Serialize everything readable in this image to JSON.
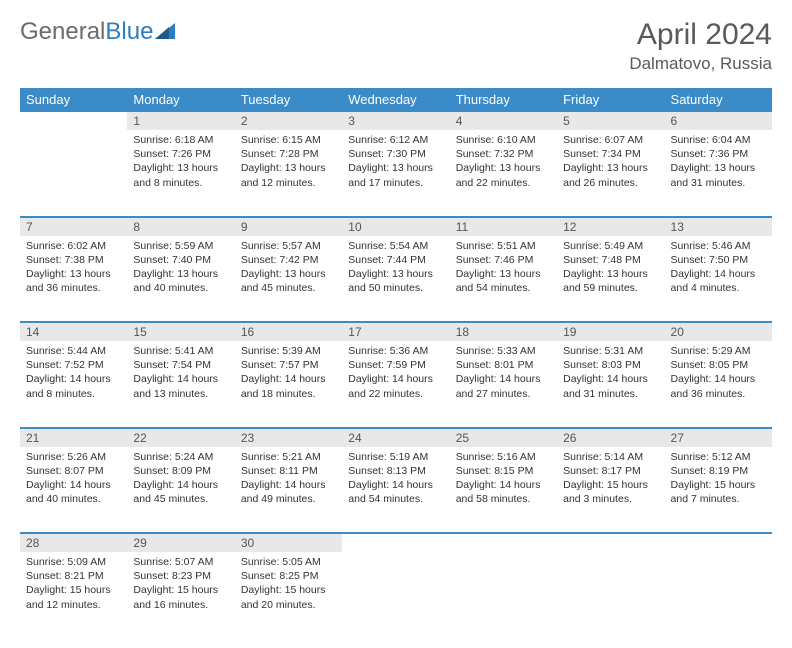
{
  "logo": {
    "text1": "General",
    "text2": "Blue"
  },
  "title": "April 2024",
  "location": "Dalmatovo, Russia",
  "weekdays": [
    "Sunday",
    "Monday",
    "Tuesday",
    "Wednesday",
    "Thursday",
    "Friday",
    "Saturday"
  ],
  "colors": {
    "header_bg": "#3b8bc8",
    "header_text": "#ffffff",
    "daynum_bg": "#e8e8e8",
    "border": "#3b8bc8",
    "logo_gray": "#6b6b6b",
    "logo_blue": "#2d7dc0"
  },
  "weeks": [
    [
      null,
      {
        "n": "1",
        "sr": "6:18 AM",
        "ss": "7:26 PM",
        "dl": "13 hours and 8 minutes."
      },
      {
        "n": "2",
        "sr": "6:15 AM",
        "ss": "7:28 PM",
        "dl": "13 hours and 12 minutes."
      },
      {
        "n": "3",
        "sr": "6:12 AM",
        "ss": "7:30 PM",
        "dl": "13 hours and 17 minutes."
      },
      {
        "n": "4",
        "sr": "6:10 AM",
        "ss": "7:32 PM",
        "dl": "13 hours and 22 minutes."
      },
      {
        "n": "5",
        "sr": "6:07 AM",
        "ss": "7:34 PM",
        "dl": "13 hours and 26 minutes."
      },
      {
        "n": "6",
        "sr": "6:04 AM",
        "ss": "7:36 PM",
        "dl": "13 hours and 31 minutes."
      }
    ],
    [
      {
        "n": "7",
        "sr": "6:02 AM",
        "ss": "7:38 PM",
        "dl": "13 hours and 36 minutes."
      },
      {
        "n": "8",
        "sr": "5:59 AM",
        "ss": "7:40 PM",
        "dl": "13 hours and 40 minutes."
      },
      {
        "n": "9",
        "sr": "5:57 AM",
        "ss": "7:42 PM",
        "dl": "13 hours and 45 minutes."
      },
      {
        "n": "10",
        "sr": "5:54 AM",
        "ss": "7:44 PM",
        "dl": "13 hours and 50 minutes."
      },
      {
        "n": "11",
        "sr": "5:51 AM",
        "ss": "7:46 PM",
        "dl": "13 hours and 54 minutes."
      },
      {
        "n": "12",
        "sr": "5:49 AM",
        "ss": "7:48 PM",
        "dl": "13 hours and 59 minutes."
      },
      {
        "n": "13",
        "sr": "5:46 AM",
        "ss": "7:50 PM",
        "dl": "14 hours and 4 minutes."
      }
    ],
    [
      {
        "n": "14",
        "sr": "5:44 AM",
        "ss": "7:52 PM",
        "dl": "14 hours and 8 minutes."
      },
      {
        "n": "15",
        "sr": "5:41 AM",
        "ss": "7:54 PM",
        "dl": "14 hours and 13 minutes."
      },
      {
        "n": "16",
        "sr": "5:39 AM",
        "ss": "7:57 PM",
        "dl": "14 hours and 18 minutes."
      },
      {
        "n": "17",
        "sr": "5:36 AM",
        "ss": "7:59 PM",
        "dl": "14 hours and 22 minutes."
      },
      {
        "n": "18",
        "sr": "5:33 AM",
        "ss": "8:01 PM",
        "dl": "14 hours and 27 minutes."
      },
      {
        "n": "19",
        "sr": "5:31 AM",
        "ss": "8:03 PM",
        "dl": "14 hours and 31 minutes."
      },
      {
        "n": "20",
        "sr": "5:29 AM",
        "ss": "8:05 PM",
        "dl": "14 hours and 36 minutes."
      }
    ],
    [
      {
        "n": "21",
        "sr": "5:26 AM",
        "ss": "8:07 PM",
        "dl": "14 hours and 40 minutes."
      },
      {
        "n": "22",
        "sr": "5:24 AM",
        "ss": "8:09 PM",
        "dl": "14 hours and 45 minutes."
      },
      {
        "n": "23",
        "sr": "5:21 AM",
        "ss": "8:11 PM",
        "dl": "14 hours and 49 minutes."
      },
      {
        "n": "24",
        "sr": "5:19 AM",
        "ss": "8:13 PM",
        "dl": "14 hours and 54 minutes."
      },
      {
        "n": "25",
        "sr": "5:16 AM",
        "ss": "8:15 PM",
        "dl": "14 hours and 58 minutes."
      },
      {
        "n": "26",
        "sr": "5:14 AM",
        "ss": "8:17 PM",
        "dl": "15 hours and 3 minutes."
      },
      {
        "n": "27",
        "sr": "5:12 AM",
        "ss": "8:19 PM",
        "dl": "15 hours and 7 minutes."
      }
    ],
    [
      {
        "n": "28",
        "sr": "5:09 AM",
        "ss": "8:21 PM",
        "dl": "15 hours and 12 minutes."
      },
      {
        "n": "29",
        "sr": "5:07 AM",
        "ss": "8:23 PM",
        "dl": "15 hours and 16 minutes."
      },
      {
        "n": "30",
        "sr": "5:05 AM",
        "ss": "8:25 PM",
        "dl": "15 hours and 20 minutes."
      },
      null,
      null,
      null,
      null
    ]
  ],
  "labels": {
    "sunrise": "Sunrise:",
    "sunset": "Sunset:",
    "daylight": "Daylight:"
  }
}
